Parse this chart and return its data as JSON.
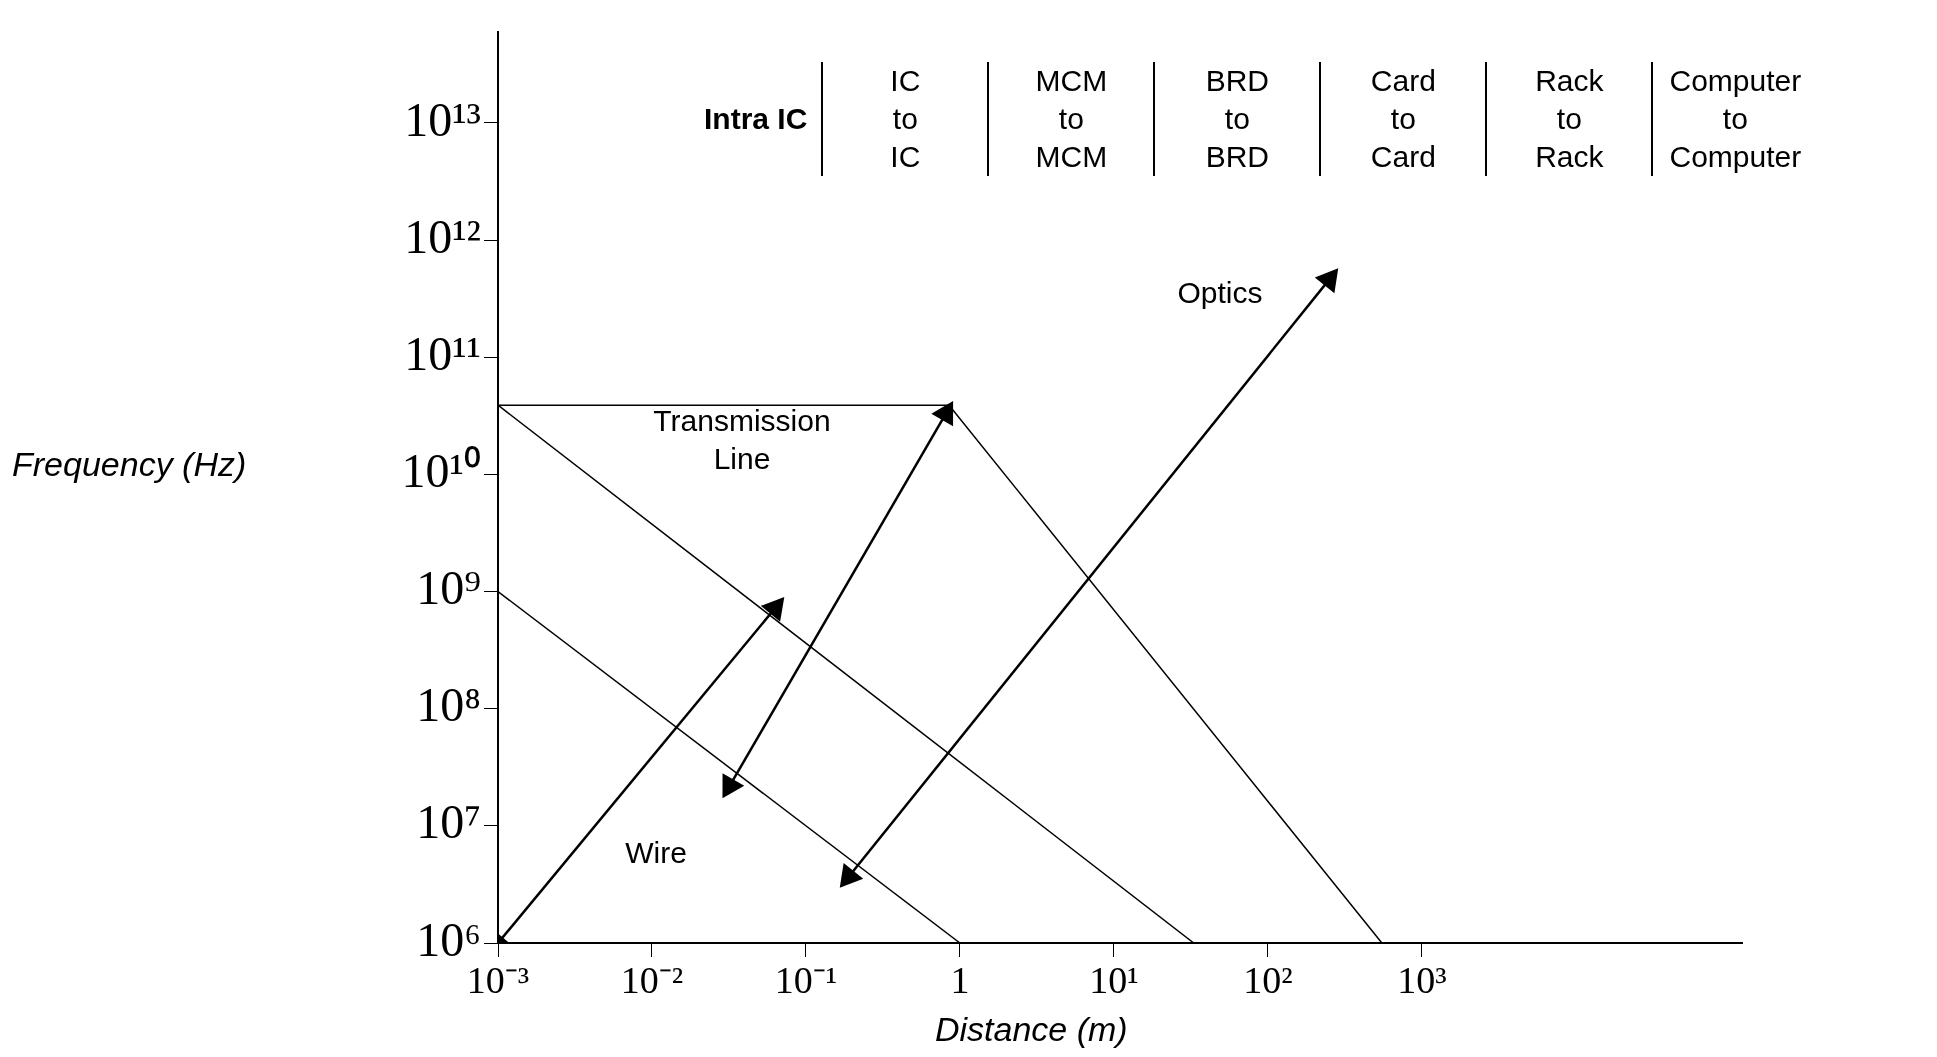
{
  "chart_data": {
    "type": "line",
    "xlabel": "Distance (m)",
    "ylabel": "Frequency (Hz)",
    "log": "xy",
    "grid": false,
    "legend": false,
    "line_style": "solid",
    "xlim": [
      0.001,
      120000
    ],
    "ylim": [
      1000000,
      60000000000000
    ],
    "xticks": [
      {
        "value": 0.001,
        "label": "10⁻³"
      },
      {
        "value": 0.01,
        "label": "10⁻²"
      },
      {
        "value": 0.1,
        "label": "10⁻¹"
      },
      1,
      {
        "value": 10,
        "label": "10¹"
      },
      {
        "value": 100,
        "label": "10²"
      },
      {
        "value": 1000,
        "label": "10³"
      }
    ],
    "yticks": [
      {
        "value": 1000000,
        "label": "10⁶"
      },
      {
        "value": 10000000,
        "label": "10⁷"
      },
      {
        "value": 100000000,
        "label": "10⁸"
      },
      {
        "value": 1000000000,
        "label": "10⁹"
      },
      {
        "value": 10000000000,
        "label": "10¹⁰"
      },
      {
        "value": 100000000000,
        "label": "10¹¹"
      },
      {
        "value": 1000000000000,
        "label": "10¹²"
      },
      {
        "value": 10000000000000,
        "label": "10¹³"
      }
    ],
    "series": [
      {
        "color": "#000000",
        "x": [
          0.001,
          0.85,
          550
        ],
        "values": [
          39000000000,
          39000000000,
          1000000
        ]
      },
      {
        "color": "#000000",
        "x": [
          0.001,
          33
        ],
        "values": [
          39000000000,
          1000000
        ]
      },
      {
        "color": "#000000",
        "x": [
          0.001,
          1
        ],
        "values": [
          1000000000,
          1000000
        ]
      },
      {
        "color": "#000000",
        "marker": "triangle",
        "x": [
          0.001,
          0.063
        ],
        "values": [
          1000000,
          720000000
        ]
      },
      {
        "color": "#000000",
        "marker": "triangle",
        "x": [
          0.032,
          0.81
        ],
        "values": [
          22000000,
          33000000000
        ]
      },
      {
        "color": "#000000",
        "marker": "triangle",
        "x": [
          0.19,
          250
        ],
        "values": [
          3700000,
          460000000000
        ]
      }
    ],
    "annotations": [
      "Intra IC",
      "IC\nto\nIC",
      "MCM\nto\nMCM",
      "BRD\nto\nBRD",
      "Card\nto\nCard",
      "Rack\nto\nRack",
      "Computer\nto\nComputer",
      "Transmission\nLine",
      "Wire",
      "Optics"
    ]
  }
}
